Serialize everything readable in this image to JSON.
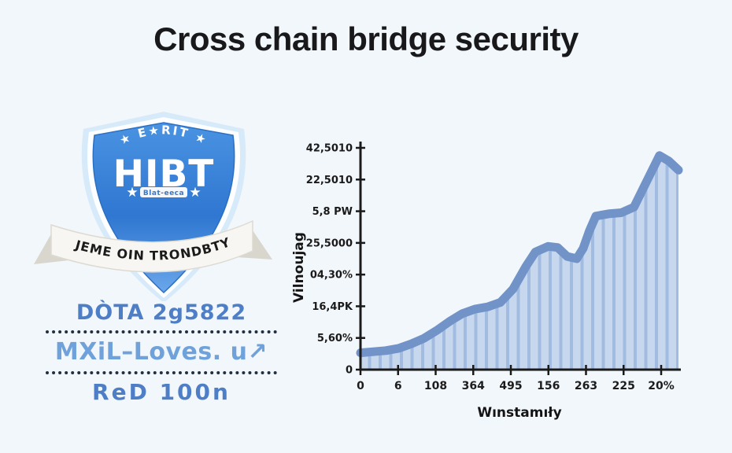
{
  "page": {
    "title": "Cross chain bridge security"
  },
  "badge": {
    "arc_text": "★ E★RIT ★",
    "main_text": "HIBT",
    "star_left": "★",
    "star_right": "★",
    "sub_text": "Blat-eeca",
    "ribbon_text": "JEME OIN TRONDBTY"
  },
  "caption": {
    "line1": "DÒTA 2g5822",
    "line2": "MXiL–Loves. u↗",
    "line3": "ReD 100n"
  },
  "chart_data": {
    "type": "area",
    "title": "",
    "xlabel": "Wınstamıły",
    "ylabel": "Vilnoujag",
    "x_tick_labels": [
      "0",
      "6",
      "108",
      "364",
      "495",
      "156",
      "263",
      "225",
      "20%"
    ],
    "y_tick_labels_top_to_bottom": [
      "42,5010",
      "22,5010",
      "5,8 PW",
      "25,5000",
      "04,30%",
      "16,4PK",
      "5,60%",
      "0"
    ],
    "ylim_fraction": [
      0,
      1
    ],
    "grid": false,
    "legend": false,
    "area_points": [
      [
        0.0,
        0.075
      ],
      [
        0.04,
        0.08
      ],
      [
        0.08,
        0.085
      ],
      [
        0.12,
        0.095
      ],
      [
        0.16,
        0.115
      ],
      [
        0.2,
        0.14
      ],
      [
        0.24,
        0.175
      ],
      [
        0.28,
        0.215
      ],
      [
        0.32,
        0.25
      ],
      [
        0.36,
        0.27
      ],
      [
        0.4,
        0.28
      ],
      [
        0.44,
        0.3
      ],
      [
        0.48,
        0.36
      ],
      [
        0.52,
        0.46
      ],
      [
        0.55,
        0.525
      ],
      [
        0.59,
        0.55
      ],
      [
        0.62,
        0.545
      ],
      [
        0.65,
        0.505
      ],
      [
        0.68,
        0.495
      ],
      [
        0.7,
        0.54
      ],
      [
        0.72,
        0.62
      ],
      [
        0.74,
        0.685
      ],
      [
        0.78,
        0.695
      ],
      [
        0.82,
        0.7
      ],
      [
        0.86,
        0.725
      ],
      [
        0.9,
        0.84
      ],
      [
        0.94,
        0.955
      ],
      [
        0.97,
        0.93
      ],
      [
        1.0,
        0.89
      ]
    ],
    "colors": {
      "band": "#7193c7",
      "fill": "#c7d8ee",
      "stripe": "#a2bbe0",
      "axis": "#1a1a1a"
    }
  },
  "colors": {
    "background": "#f2f7fb",
    "title": "#19191b",
    "shield_blue": "#3d86dc",
    "caption_blue_dark": "#4d7ec6",
    "caption_blue_light": "#6fa2da"
  }
}
